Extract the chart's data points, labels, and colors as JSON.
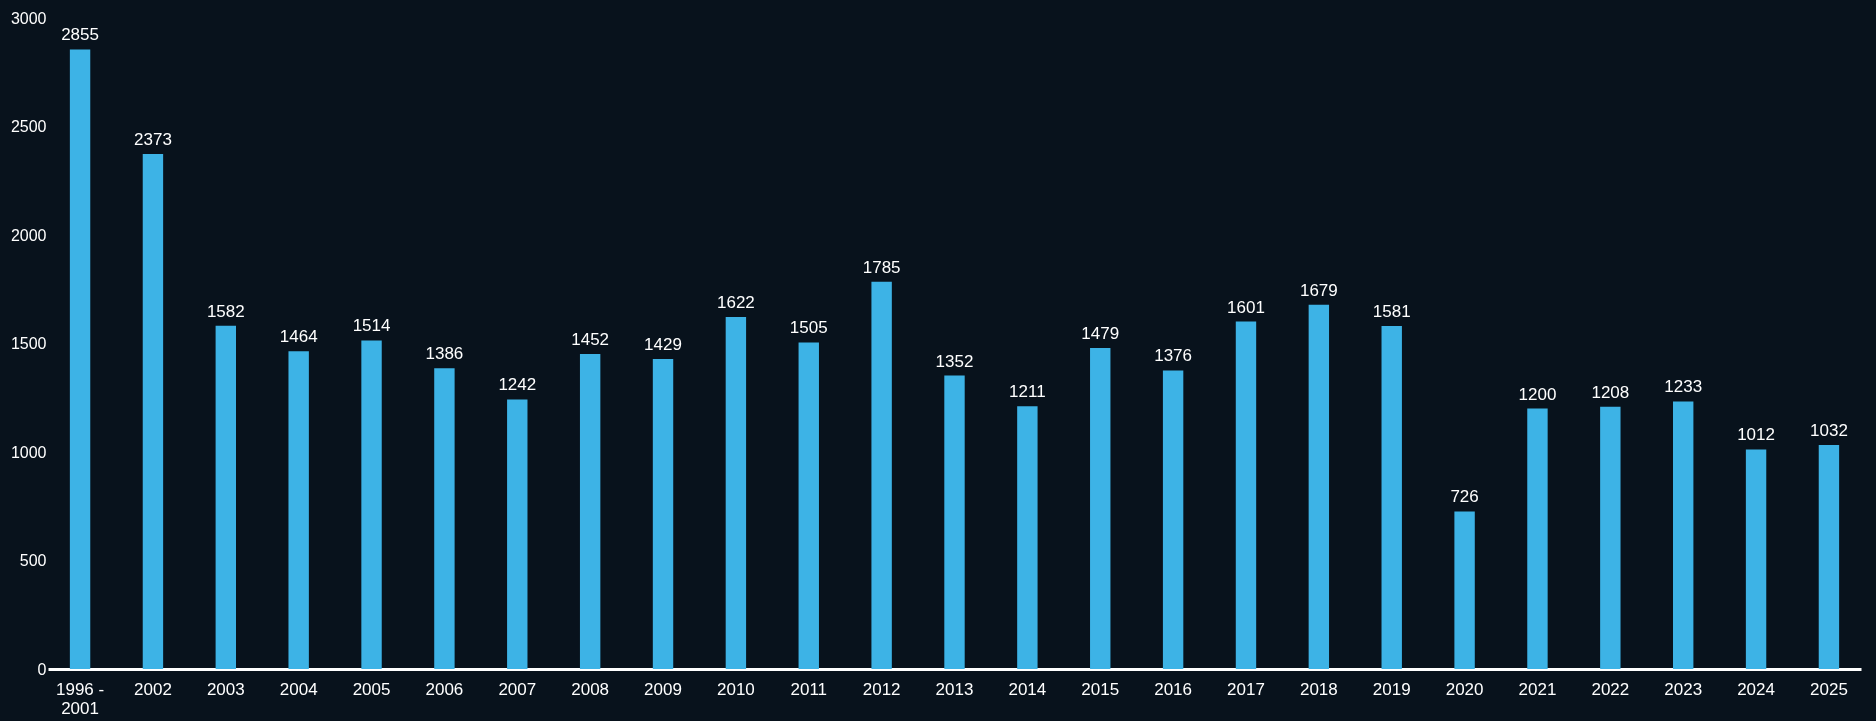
{
  "chart_data": {
    "type": "bar",
    "categories": [
      "1996 - 2001",
      "2002",
      "2003",
      "2004",
      "2005",
      "2006",
      "2007",
      "2008",
      "2009",
      "2010",
      "2011",
      "2012",
      "2013",
      "2014",
      "2015",
      "2016",
      "2017",
      "2018",
      "2019",
      "2020",
      "2021",
      "2022",
      "2023",
      "2024",
      "2025"
    ],
    "values": [
      2855,
      2373,
      1582,
      1464,
      1514,
      1386,
      1242,
      1452,
      1429,
      1622,
      1505,
      1785,
      1352,
      1211,
      1479,
      1376,
      1601,
      1679,
      1581,
      726,
      1200,
      1208,
      1233,
      1012,
      1032
    ],
    "color": "#3db3e6",
    "ylim": [
      0,
      3000
    ],
    "yticks": [
      0,
      500,
      1000,
      1500,
      2000,
      2500,
      3000
    ],
    "grid": false,
    "data_labels": true
  }
}
